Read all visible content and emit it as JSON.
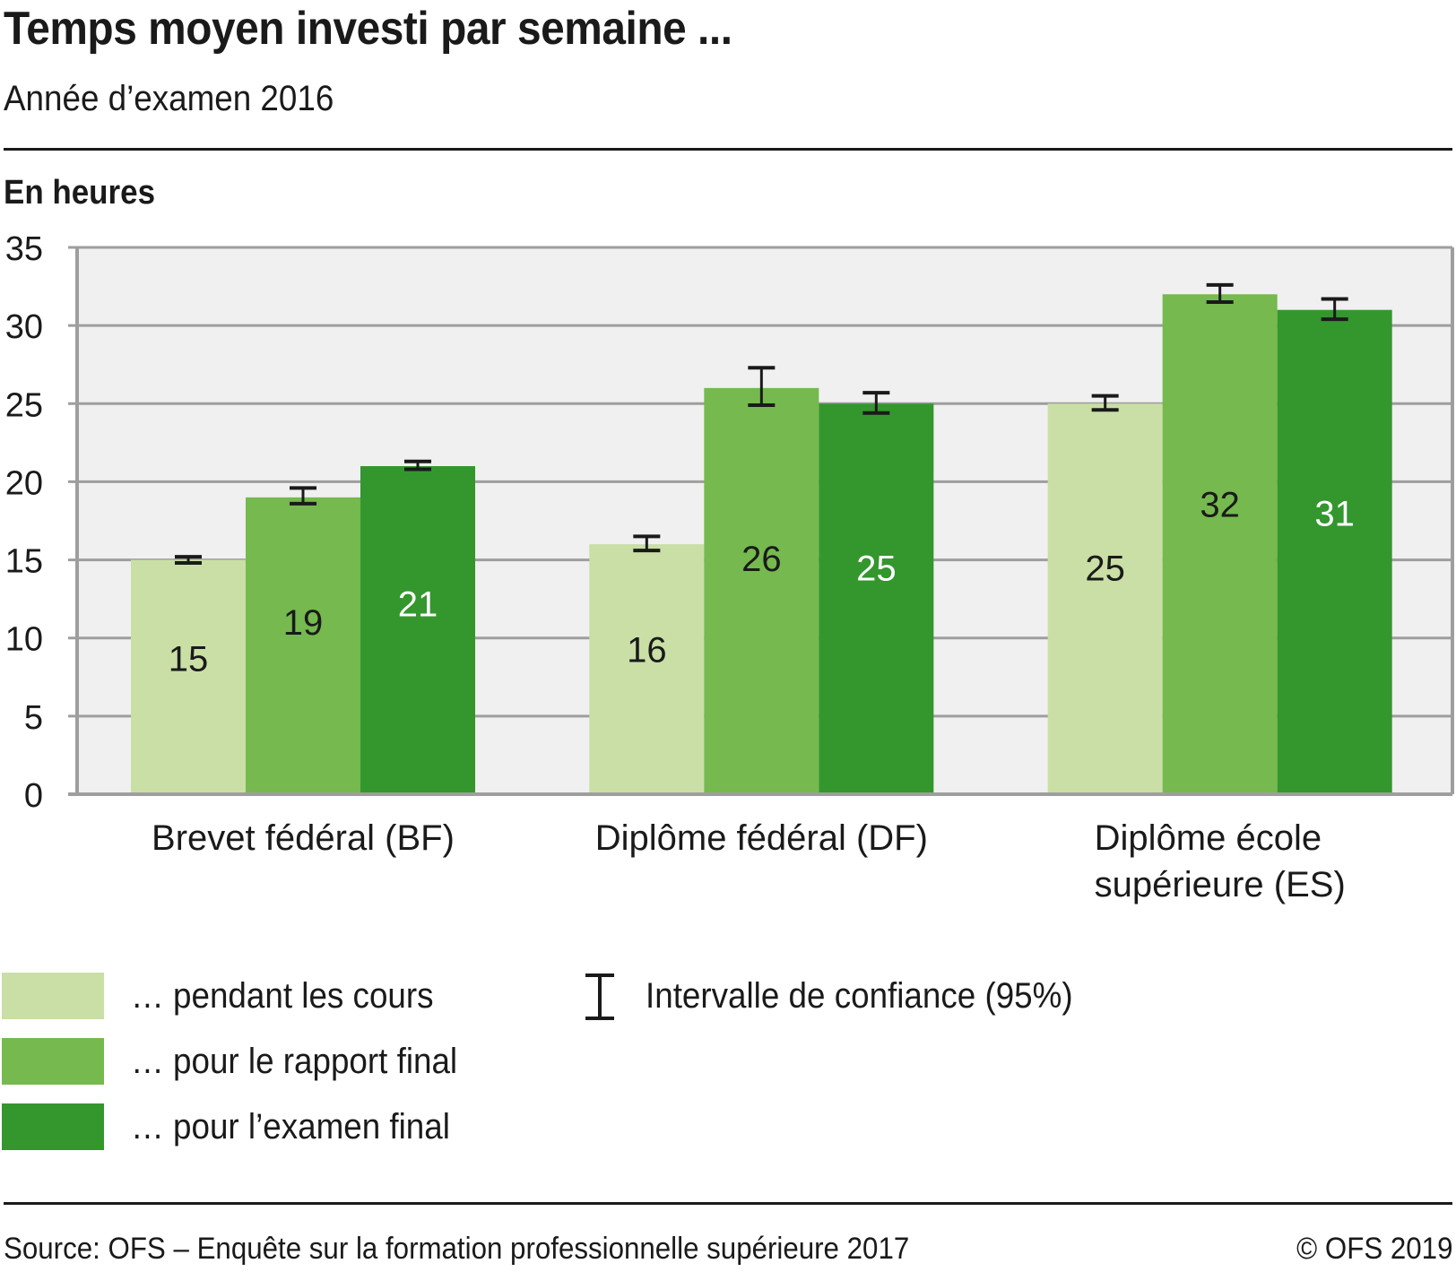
{
  "header": {
    "title": "Temps moyen investi par semaine ...",
    "subtitle": "Année d’examen 2016",
    "unit_label": "En heures"
  },
  "chart_data": {
    "type": "bar",
    "title": "Temps moyen investi par semaine ...",
    "subtitle": "Année d’examen 2016",
    "xlabel": "",
    "ylabel": "En heures",
    "ylim": [
      0,
      35
    ],
    "yticks": [
      0,
      5,
      10,
      15,
      20,
      25,
      30,
      35
    ],
    "grid": true,
    "categories": [
      [
        "Brevet fédéral (BF)"
      ],
      [
        "Diplôme fédéral (DF)"
      ],
      [
        "Diplôme école",
        "supérieure (ES)"
      ]
    ],
    "series": [
      {
        "name": "… pendant les cours",
        "color": "#c9dfa5",
        "label_color": "#1a1a1a",
        "values": [
          15,
          16,
          25
        ],
        "ci_low": [
          14.8,
          15.6,
          24.6
        ],
        "ci_high": [
          15.2,
          16.5,
          25.5
        ]
      },
      {
        "name": "… pour le rapport final",
        "color": "#75b94f",
        "label_color": "#1a1a1a",
        "values": [
          19,
          26,
          32
        ],
        "ci_low": [
          18.6,
          24.9,
          31.5
        ],
        "ci_high": [
          19.6,
          27.3,
          32.6
        ]
      },
      {
        "name": "… pour l’examen final",
        "color": "#33972e",
        "label_color": "#ffffff",
        "values": [
          21,
          25,
          31
        ],
        "ci_low": [
          20.8,
          24.4,
          30.4
        ],
        "ci_high": [
          21.3,
          25.7,
          31.7
        ]
      }
    ],
    "error_bar_legend": "Intervalle de confiance (95%)",
    "legend_position": "bottom-left",
    "colors": {
      "plot_background": "#f0f0f0",
      "gridline": "#9e9e9e",
      "error_bar": "#1a1a1a"
    }
  },
  "legend": {
    "items": [
      {
        "label": "… pendant les cours",
        "color": "#c9dfa5"
      },
      {
        "label": "… pour le rapport final",
        "color": "#75b94f"
      },
      {
        "label": "… pour l’examen final",
        "color": "#33972e"
      }
    ],
    "ci_label": "Intervalle de confiance (95%)"
  },
  "footer": {
    "source": "Source: OFS – Enquête sur la formation professionnelle supérieure 2017",
    "copyright": "© OFS 2019"
  }
}
